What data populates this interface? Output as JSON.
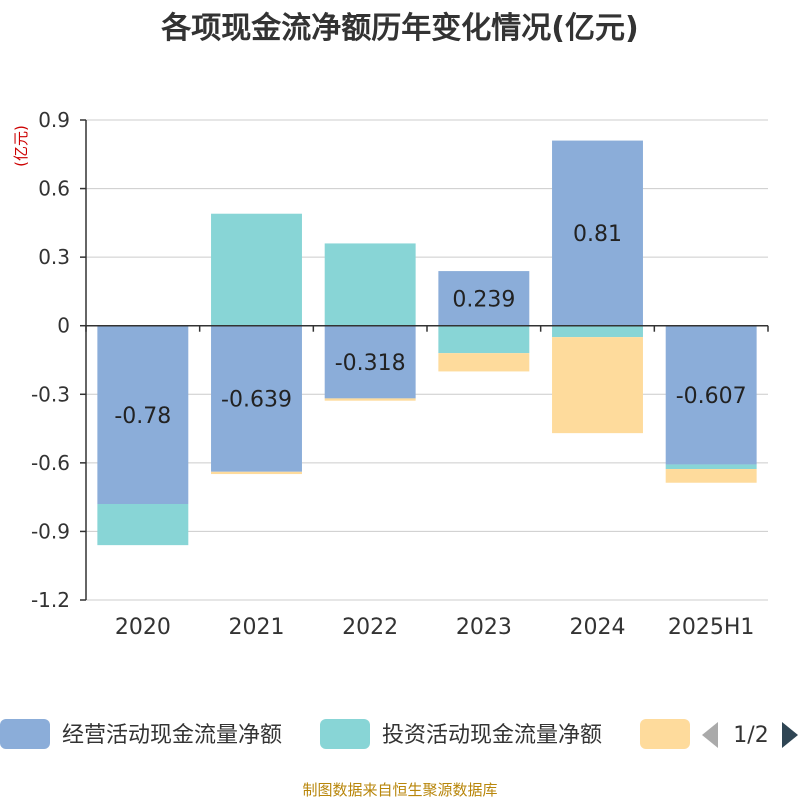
{
  "chart_data": {
    "type": "bar",
    "stacked": true,
    "title": "各项现金流净额历年变化情况(亿元)",
    "ylabel": "(亿元)",
    "ylim": [
      -1.2,
      0.9
    ],
    "yticks": [
      0.9,
      0.6,
      0.3,
      0,
      -0.3,
      -0.6,
      -0.9,
      -1.2
    ],
    "ytick_labels": [
      "0.9",
      "0.6",
      "0.3",
      "0",
      "-0.3",
      "-0.6",
      "-0.9",
      "-1.2"
    ],
    "grid": true,
    "legend_position": "bottom",
    "categories": [
      "2020",
      "2021",
      "2022",
      "2023",
      "2024",
      "2025H1"
    ],
    "series": [
      {
        "name": "经营活动现金流量净额",
        "color": "#8badd9",
        "values": [
          -0.78,
          -0.639,
          -0.318,
          0.239,
          0.81,
          -0.607
        ],
        "show_labels": true
      },
      {
        "name": "投资活动现金流量净额",
        "color": "#88d5d6",
        "values": [
          -0.18,
          0.49,
          0.36,
          -0.12,
          -0.05,
          -0.02
        ],
        "show_labels": false
      },
      {
        "name": "",
        "color": "#fedb9c",
        "values": [
          0.0,
          -0.01,
          -0.01,
          -0.08,
          -0.42,
          -0.06
        ],
        "show_labels": false
      }
    ],
    "data_labels": [
      "-0.78",
      "-0.639",
      "-0.318",
      "0.239",
      "0.81",
      "-0.607"
    ]
  },
  "legend": {
    "page_indicator": "1/2",
    "prev_icon": "triangle-left-icon",
    "next_icon": "triangle-right-icon"
  },
  "footer": {
    "source": "制图数据来自恒生聚源数据库"
  }
}
